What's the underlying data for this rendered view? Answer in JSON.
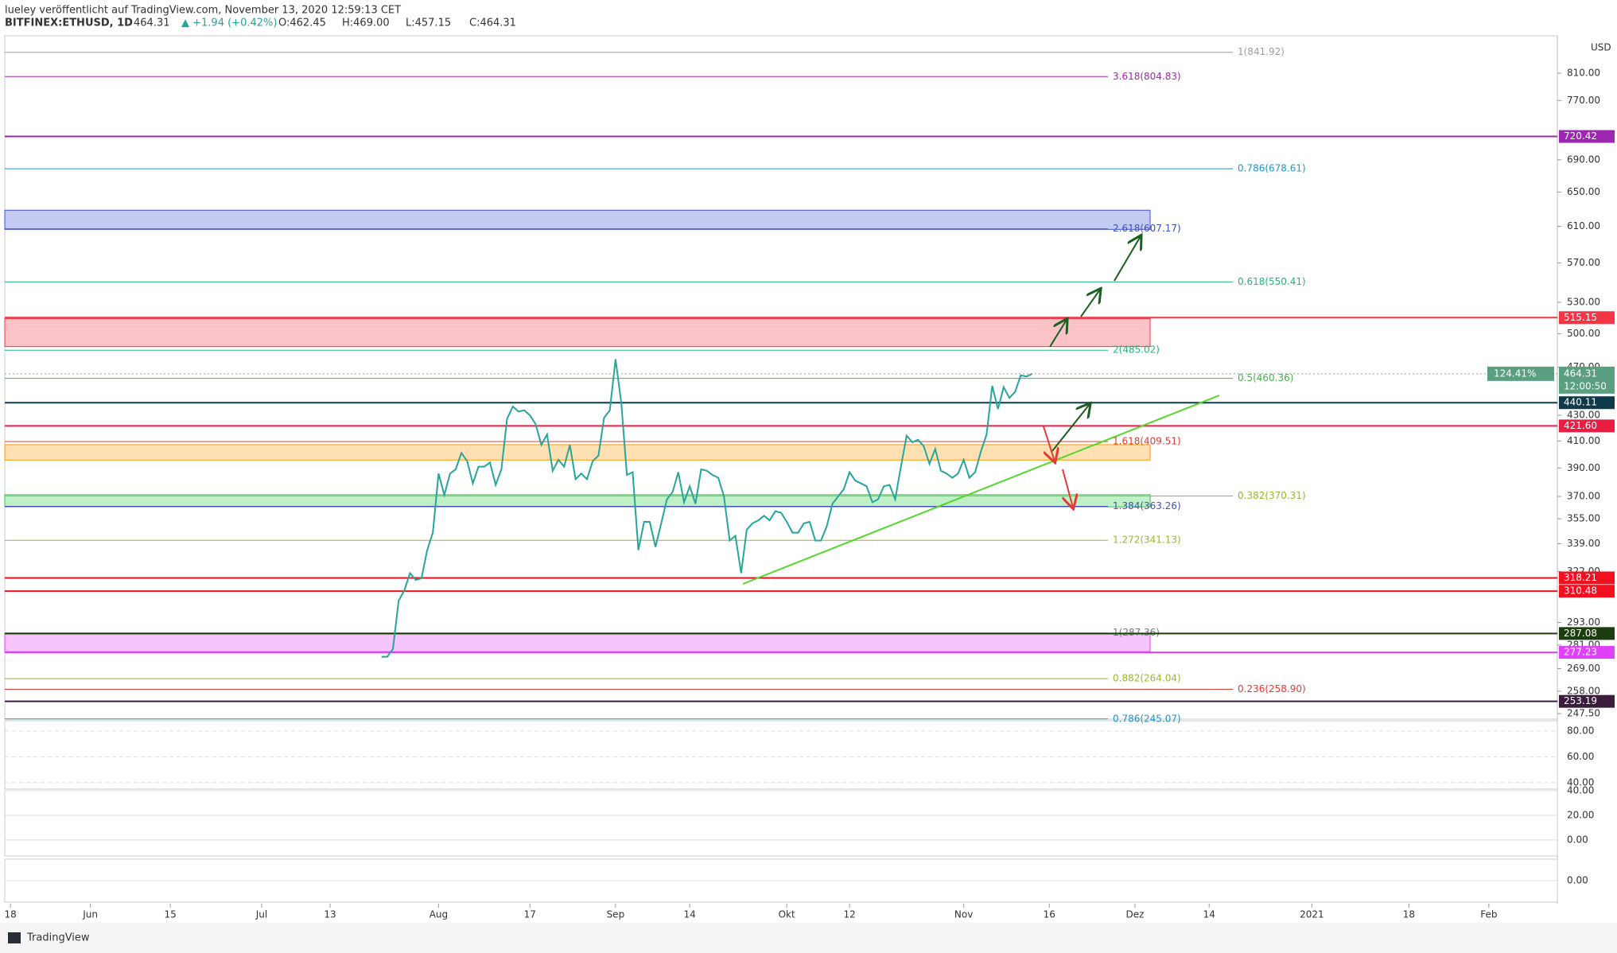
{
  "header": {
    "published": "lueley veröffentlicht auf TradingView.com, November 13, 2020 12:59:13 CET",
    "symbol": "BITFINEX:ETHUSD, 1D",
    "last": "464.31",
    "change": "▲ +1.94 (+0.42%)",
    "open": "O:462.45",
    "high": "H:469.00",
    "low": "L:457.15",
    "close": "C:464.31"
  },
  "footer": "TradingView",
  "chart_data": {
    "type": "line",
    "currency": "USD",
    "log_scale": true,
    "xlim": [
      "2020-05-17",
      "2021-02-13"
    ],
    "xticks": [
      {
        "value": "2020-05-18",
        "label": "18"
      },
      {
        "value": "2020-06-01",
        "label": "Jun"
      },
      {
        "value": "2020-06-15",
        "label": "15"
      },
      {
        "value": "2020-07-01",
        "label": "Jul"
      },
      {
        "value": "2020-07-13",
        "label": "13"
      },
      {
        "value": "2020-08-01",
        "label": "Aug"
      },
      {
        "value": "2020-08-17",
        "label": "17"
      },
      {
        "value": "2020-09-01",
        "label": "Sep"
      },
      {
        "value": "2020-09-14",
        "label": "14"
      },
      {
        "value": "2020-10-01",
        "label": "Okt"
      },
      {
        "value": "2020-10-12",
        "label": "12"
      },
      {
        "value": "2020-11-01",
        "label": "Nov"
      },
      {
        "value": "2020-11-16",
        "label": "16"
      },
      {
        "value": "2020-12-01",
        "label": "Dez"
      },
      {
        "value": "2020-12-14",
        "label": "14"
      },
      {
        "value": "2021-01-01",
        "label": "2021"
      },
      {
        "value": "2021-01-18",
        "label": "18"
      },
      {
        "value": "2021-02-01",
        "label": "Feb"
      }
    ],
    "ylim": [
      245,
      868
    ],
    "yticks": [
      {
        "value": 810,
        "label": "810.00"
      },
      {
        "value": 770,
        "label": "770.00"
      },
      {
        "value": 690,
        "label": "690.00"
      },
      {
        "value": 650,
        "label": "650.00"
      },
      {
        "value": 610,
        "label": "610.00"
      },
      {
        "value": 570,
        "label": "570.00"
      },
      {
        "value": 530,
        "label": "530.00"
      },
      {
        "value": 500,
        "label": "500.00"
      },
      {
        "value": 470,
        "label": "470.00"
      },
      {
        "value": 430,
        "label": "430.00"
      },
      {
        "value": 410,
        "label": "410.00"
      },
      {
        "value": 390,
        "label": "390.00"
      },
      {
        "value": 370,
        "label": "370.00"
      },
      {
        "value": 355,
        "label": "355.00"
      },
      {
        "value": 339,
        "label": "339.00"
      },
      {
        "value": 322,
        "label": "322.00"
      },
      {
        "value": 293,
        "label": "293.00"
      },
      {
        "value": 281,
        "label": "281.00"
      },
      {
        "value": 269,
        "label": "269.00"
      },
      {
        "value": 258,
        "label": "258.00"
      },
      {
        "value": 247.5,
        "label": "247.50"
      }
    ],
    "x": [
      "2020-07-22",
      "2020-07-23",
      "2020-07-24",
      "2020-07-25",
      "2020-07-26",
      "2020-07-27",
      "2020-07-28",
      "2020-07-29",
      "2020-07-30",
      "2020-07-31",
      "2020-08-01",
      "2020-08-02",
      "2020-08-03",
      "2020-08-04",
      "2020-08-05",
      "2020-08-06",
      "2020-08-07",
      "2020-08-08",
      "2020-08-09",
      "2020-08-10",
      "2020-08-11",
      "2020-08-12",
      "2020-08-13",
      "2020-08-14",
      "2020-08-15",
      "2020-08-16",
      "2020-08-17",
      "2020-08-18",
      "2020-08-19",
      "2020-08-20",
      "2020-08-21",
      "2020-08-22",
      "2020-08-23",
      "2020-08-24",
      "2020-08-25",
      "2020-08-26",
      "2020-08-27",
      "2020-08-28",
      "2020-08-29",
      "2020-08-30",
      "2020-08-31",
      "2020-09-01",
      "2020-09-02",
      "2020-09-03",
      "2020-09-04",
      "2020-09-05",
      "2020-09-06",
      "2020-09-07",
      "2020-09-08",
      "2020-09-09",
      "2020-09-10",
      "2020-09-11",
      "2020-09-12",
      "2020-09-13",
      "2020-09-14",
      "2020-09-15",
      "2020-09-16",
      "2020-09-17",
      "2020-09-18",
      "2020-09-19",
      "2020-09-20",
      "2020-09-21",
      "2020-09-22",
      "2020-09-23",
      "2020-09-24",
      "2020-09-25",
      "2020-09-26",
      "2020-09-27",
      "2020-09-28",
      "2020-09-29",
      "2020-09-30",
      "2020-10-01",
      "2020-10-02",
      "2020-10-03",
      "2020-10-04",
      "2020-10-05",
      "2020-10-06",
      "2020-10-07",
      "2020-10-08",
      "2020-10-09",
      "2020-10-10",
      "2020-10-11",
      "2020-10-12",
      "2020-10-13",
      "2020-10-14",
      "2020-10-15",
      "2020-10-16",
      "2020-10-17",
      "2020-10-18",
      "2020-10-19",
      "2020-10-20",
      "2020-10-21",
      "2020-10-22",
      "2020-10-23",
      "2020-10-24",
      "2020-10-25",
      "2020-10-26",
      "2020-10-27",
      "2020-10-28",
      "2020-10-29",
      "2020-10-30",
      "2020-10-31",
      "2020-11-01",
      "2020-11-02",
      "2020-11-03",
      "2020-11-04",
      "2020-11-05",
      "2020-11-06",
      "2020-11-07",
      "2020-11-08",
      "2020-11-09",
      "2020-11-10",
      "2020-11-11",
      "2020-11-12",
      "2020-11-13"
    ],
    "series": [
      {
        "name": "ETHUSD",
        "color": "#26a69a",
        "values": [
          275,
          275,
          279,
          305,
          311,
          321,
          317,
          318,
          335,
          346,
          386,
          371,
          386,
          389,
          401,
          395,
          379,
          391,
          391,
          394,
          378,
          389,
          427,
          437,
          433,
          434,
          430,
          423,
          407,
          415,
          388,
          396,
          391,
          407,
          382,
          386,
          382,
          395,
          399,
          428,
          434,
          477,
          440,
          385,
          387,
          335,
          353,
          353,
          337,
          352,
          368,
          373,
          387,
          366,
          377,
          365,
          389,
          388,
          385,
          383,
          370,
          341,
          344,
          321,
          348,
          352,
          354,
          357,
          354,
          360,
          359,
          353,
          346,
          346,
          352,
          353,
          341,
          341,
          350,
          365,
          370,
          375,
          387,
          381,
          379,
          377,
          366,
          368,
          377,
          378,
          368,
          391,
          414,
          409,
          411,
          406,
          393,
          404,
          388,
          386,
          383,
          386,
          396,
          383,
          387,
          402,
          415,
          454,
          435,
          453,
          444,
          449,
          463,
          462,
          464.31
        ]
      }
    ],
    "last_price": {
      "value": 464.31,
      "change": "124.41%",
      "countdown": "12:00:50"
    },
    "levels": [
      {
        "value": 720.42,
        "color": "#9c27b0"
      },
      {
        "value": 515.15,
        "color": "#f23645"
      },
      {
        "value": 440.11,
        "color": "#0e3a4a"
      },
      {
        "value": {
          "value": 421.6,
          "label": "421.60"
        },
        "color": "#e91e43"
      },
      {
        "value": 318.21,
        "color": "#f20f1f"
      },
      {
        "value": 310.48,
        "color": "#f20f1f"
      },
      {
        "value": 287.08,
        "color": "#1b3d0f"
      },
      {
        "value": 277.23,
        "color": "#e040fb"
      },
      {
        "value": 253.19,
        "color": "#3c1c3c"
      }
    ],
    "zones": [
      {
        "low": 606.6,
        "high": 628.5,
        "color": "#3f51d8"
      },
      {
        "low": 488.3,
        "high": 514.2,
        "color": "#f23645"
      },
      {
        "low": 395.8,
        "high": 407.2,
        "color": "#ff9800"
      },
      {
        "low": 362.9,
        "high": 371.2,
        "color": "#2ecc40"
      },
      {
        "low": 277.6,
        "high": 286.8,
        "color": "#e040fb"
      }
    ],
    "fib_retracement": [
      {
        "value": 841.92,
        "label": "1(841.92)",
        "color": "#9e9e9e"
      },
      {
        "value": 678.61,
        "label": "0.786(678.61)",
        "color": "#2196c8"
      },
      {
        "value": 550.41,
        "label": "0.618(550.41)",
        "color": "#26b47a"
      },
      {
        "value": 460.36,
        "label": "0.5(460.36)",
        "color": "#4caf50"
      },
      {
        "value": 370.31,
        "label": "0.382(370.31)",
        "color": "#9ab830"
      },
      {
        "value": 258.9,
        "label": "0.236(258.90)",
        "color": "#e53935"
      }
    ],
    "fib_extension": [
      {
        "value": 804.83,
        "label": "3.618(804.83)",
        "color": "#9c27b0"
      },
      {
        "value": 607.17,
        "label": "2.618(607.17)",
        "color": "#3f51b5"
      },
      {
        "value": 485.02,
        "label": "2(485.02)",
        "color": "#26b47a"
      },
      {
        "value": 409.51,
        "label": "1.618(409.51)",
        "color": "#e53935"
      },
      {
        "value": 363.26,
        "label": "1.384(363.26)",
        "color": "#3f51b5"
      },
      {
        "value": 341.13,
        "label": "1.272(341.13)",
        "color": "#9ab830"
      },
      {
        "value": 287.36,
        "label": "1(287.36)",
        "color": "#777"
      },
      {
        "value": 264.04,
        "label": "0.882(264.04)",
        "color": "#9ab830"
      },
      {
        "value": 245.07,
        "label": "0.786(245.07)",
        "color": "#2196c8"
      }
    ],
    "panes": [
      {
        "ylim": [
          35,
          88
        ],
        "yticks": [
          {
            "value": 80,
            "label": "80.00"
          },
          {
            "value": 60,
            "label": "60.00"
          },
          {
            "value": 40,
            "label": "40.00"
          }
        ]
      },
      {
        "ylim": [
          -13,
          40
        ],
        "yticks": [
          {
            "value": 40,
            "label": "40.00"
          },
          {
            "value": 20,
            "label": "20.00"
          },
          {
            "value": 0,
            "label": "0.00"
          }
        ]
      },
      {
        "ylim": [
          -1,
          1
        ],
        "yticks": [
          {
            "value": 0,
            "label": "0.00"
          }
        ]
      }
    ]
  }
}
